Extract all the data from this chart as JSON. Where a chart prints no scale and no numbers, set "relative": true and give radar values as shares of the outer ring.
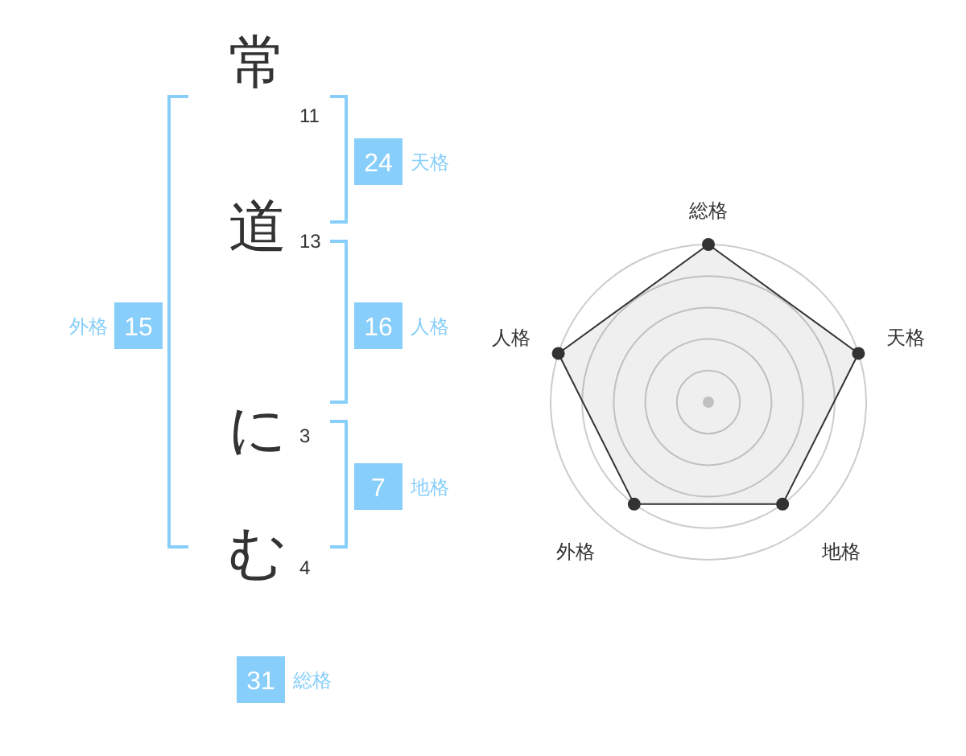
{
  "chart_data": [
    {
      "type": "other",
      "categories": [
        "常",
        "道",
        "に",
        "む"
      ],
      "values": [
        11,
        13,
        3,
        4
      ],
      "data_labels": true,
      "color": "#87cefa",
      "annotations": [
        "24",
        "天格",
        "16",
        "人格",
        "7",
        "地格",
        "15",
        "外格",
        "31",
        "総格"
      ]
    },
    {
      "type": "radar",
      "categories": [
        "総格",
        "天格",
        "地格",
        "外格",
        "人格"
      ],
      "relative": true,
      "grid": true,
      "marker": "circle",
      "series": [
        {
          "color": "#333333",
          "values": [
            1,
            1,
            0.8,
            0.8,
            1
          ]
        }
      ]
    }
  ]
}
